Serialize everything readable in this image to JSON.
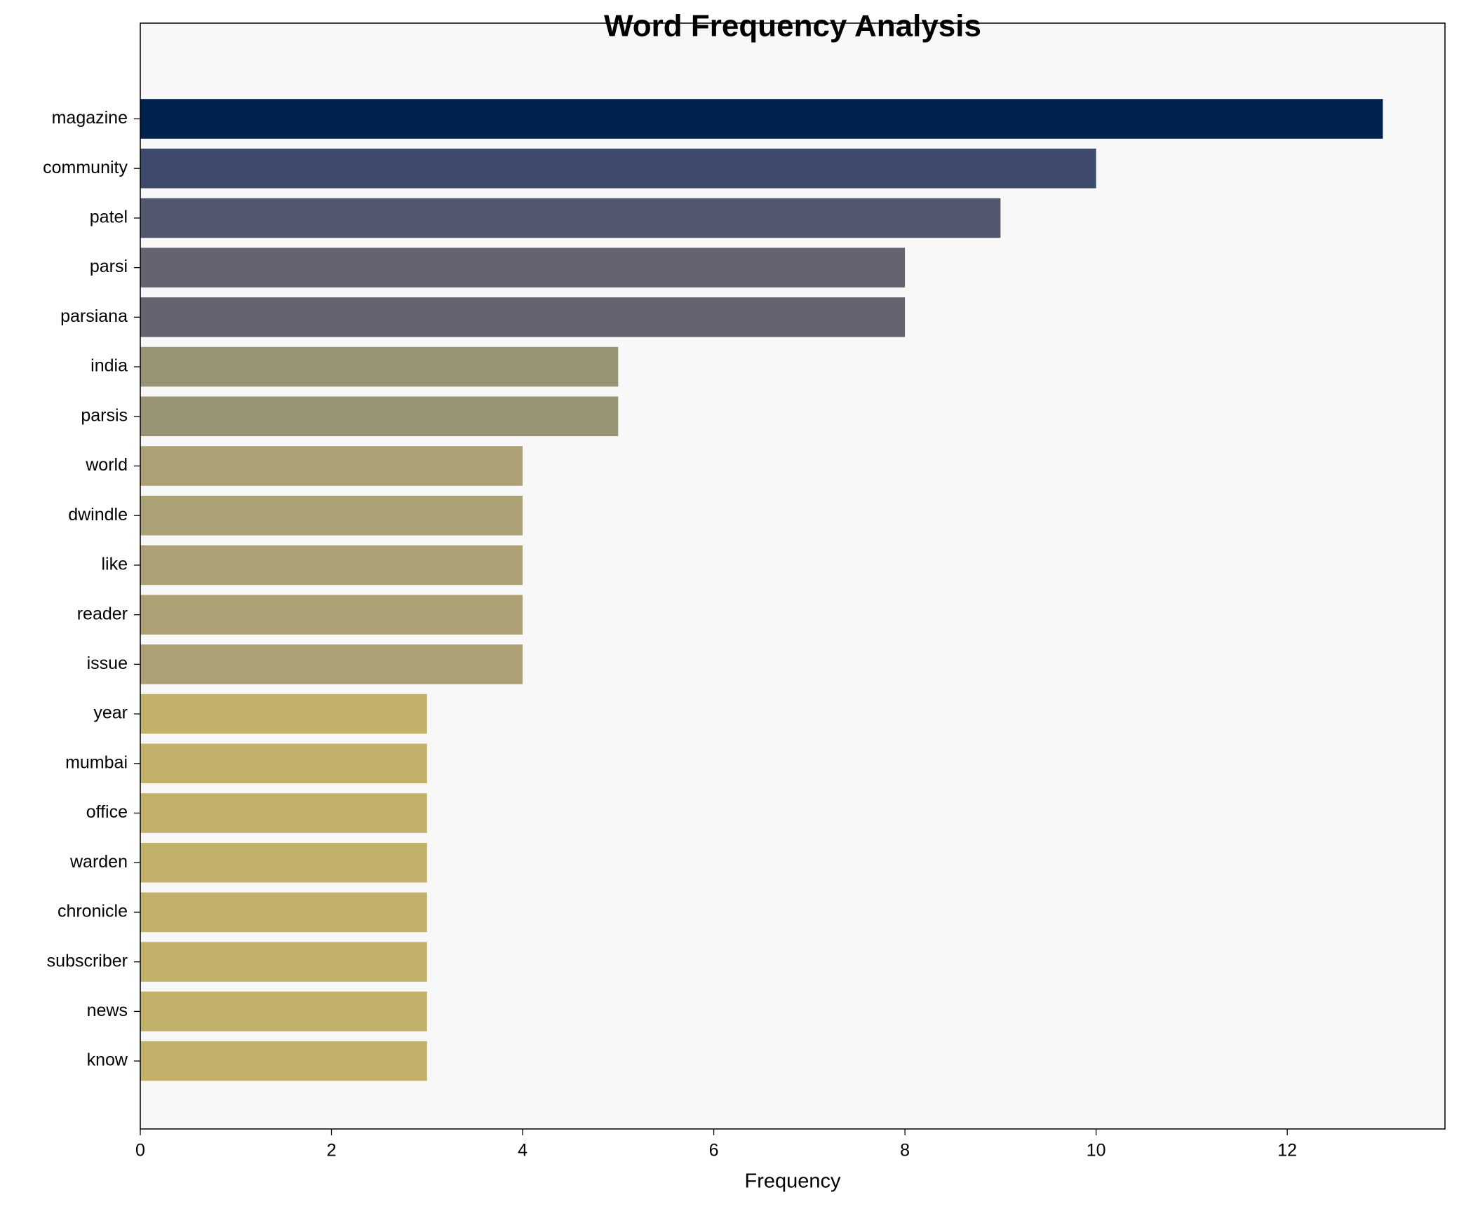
{
  "chart_data": {
    "type": "barh",
    "title": "Word Frequency Analysis",
    "xlabel": "Frequency",
    "categories": [
      "magazine",
      "community",
      "patel",
      "parsi",
      "parsiana",
      "india",
      "parsis",
      "world",
      "dwindle",
      "like",
      "reader",
      "issue",
      "year",
      "mumbai",
      "office",
      "warden",
      "chronicle",
      "subscriber",
      "news",
      "know"
    ],
    "values": [
      13,
      10,
      9,
      8,
      8,
      5,
      5,
      4,
      4,
      4,
      4,
      4,
      3,
      3,
      3,
      3,
      3,
      3,
      3,
      3
    ],
    "colors": [
      "#00224e",
      "#3d4a6b",
      "#52576d",
      "#63646f",
      "#63646f",
      "#9a9477",
      "#9a9477",
      "#aba175",
      "#aba175",
      "#aba175",
      "#aba175",
      "#aba175",
      "#c1b16b",
      "#c1b16b",
      "#c1b16b",
      "#c1b16b",
      "#c1b16b",
      "#c1b16b",
      "#c1b16b",
      "#c1b16b"
    ],
    "xlim": [
      0,
      13.65
    ],
    "xticks": [
      0,
      2,
      4,
      6,
      8,
      10,
      12
    ],
    "grid": false
  }
}
